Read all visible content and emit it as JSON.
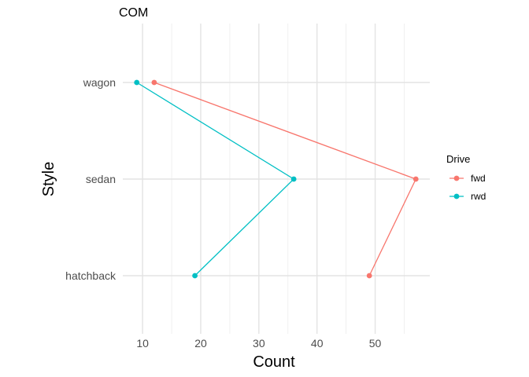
{
  "chart_data": {
    "type": "line",
    "title": "COM",
    "xlabel": "Count",
    "ylabel": "Style",
    "xlim": [
      6.6,
      59.4
    ],
    "xticks": [
      10,
      20,
      30,
      40,
      50
    ],
    "categories": [
      "hatchback",
      "sedan",
      "wagon"
    ],
    "grid": true,
    "legend": {
      "title": "Drive",
      "position": "right"
    },
    "series": [
      {
        "name": "fwd",
        "color": "#F8766D",
        "values": [
          49,
          57,
          12
        ]
      },
      {
        "name": "rwd",
        "color": "#00BFC4",
        "values": [
          19,
          36,
          9
        ]
      }
    ]
  }
}
